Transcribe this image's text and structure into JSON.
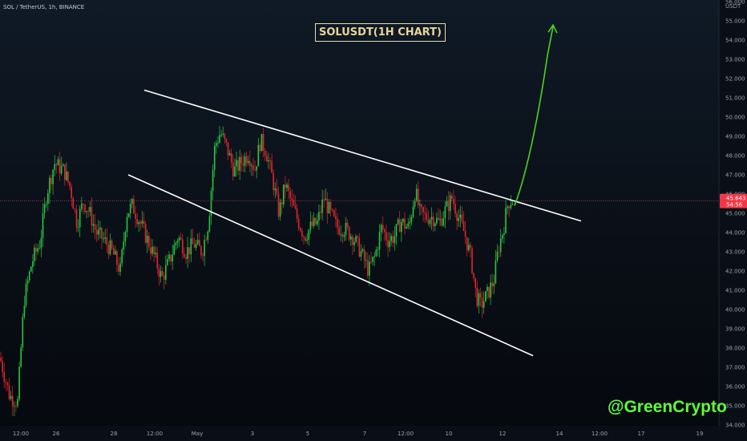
{
  "header": {
    "symbol_label": "SOL / TetherUS, 1h, BINANCE",
    "chart_title": "SOLUSDT(1H CHART)",
    "watermark": "@GreenCrypto",
    "currency": "USDT"
  },
  "colors": {
    "up": "#26c940",
    "down": "#e3262e",
    "trendline": "#ffffff",
    "projection": "#4cd41e",
    "price_badge": "#f23645",
    "price_line": "#a8323a"
  },
  "chart_data": {
    "type": "candlestick",
    "title": "SOLUSDT(1H CHART)",
    "y_axis": {
      "unit": "USDT",
      "range": [
        34.0,
        56.0
      ],
      "ticks": [
        "34.000",
        "35.000",
        "36.000",
        "37.000",
        "38.000",
        "39.000",
        "40.000",
        "41.000",
        "42.000",
        "43.000",
        "44.000",
        "45.000",
        "46.000",
        "47.000",
        "48.000",
        "49.000",
        "50.000",
        "51.000",
        "52.000",
        "53.000",
        "54.000",
        "55.000",
        "56.000"
      ]
    },
    "x_axis": {
      "tick_labels": [
        "12:00",
        "26",
        "28",
        "12:00",
        "May",
        "3",
        "5",
        "7",
        "12:00",
        "10",
        "12",
        "14",
        "12:00",
        "17",
        "19"
      ]
    },
    "current_price": "45.643",
    "countdown": "54:56",
    "price_path": [
      [
        0,
        37.5
      ],
      [
        12,
        35.5
      ],
      [
        22,
        35.2
      ],
      [
        30,
        40.5
      ],
      [
        40,
        42.5
      ],
      [
        50,
        43.5
      ],
      [
        58,
        46.0
      ],
      [
        68,
        47.6
      ],
      [
        80,
        47.2
      ],
      [
        88,
        46.3
      ],
      [
        96,
        44.5
      ],
      [
        104,
        45.6
      ],
      [
        112,
        45.0
      ],
      [
        120,
        44.0
      ],
      [
        130,
        43.6
      ],
      [
        140,
        43.0
      ],
      [
        150,
        42.0
      ],
      [
        158,
        45.0
      ],
      [
        165,
        45.4
      ],
      [
        174,
        44.6
      ],
      [
        182,
        43.8
      ],
      [
        192,
        42.8
      ],
      [
        202,
        41.6
      ],
      [
        212,
        42.6
      ],
      [
        222,
        43.8
      ],
      [
        232,
        43.0
      ],
      [
        242,
        43.4
      ],
      [
        252,
        43.0
      ],
      [
        260,
        44.5
      ],
      [
        268,
        48.5
      ],
      [
        275,
        49.2
      ],
      [
        283,
        48.4
      ],
      [
        292,
        47.2
      ],
      [
        300,
        47.6
      ],
      [
        310,
        48.1
      ],
      [
        318,
        47.3
      ],
      [
        325,
        48.8
      ],
      [
        332,
        48.2
      ],
      [
        340,
        46.8
      ],
      [
        348,
        45.0
      ],
      [
        356,
        46.5
      ],
      [
        364,
        45.5
      ],
      [
        372,
        44.6
      ],
      [
        380,
        43.8
      ],
      [
        388,
        44.3
      ],
      [
        396,
        44.5
      ],
      [
        404,
        45.8
      ],
      [
        412,
        45.0
      ],
      [
        420,
        44.3
      ],
      [
        430,
        44.2
      ],
      [
        440,
        43.8
      ],
      [
        450,
        43.0
      ],
      [
        460,
        42.0
      ],
      [
        468,
        42.8
      ],
      [
        476,
        44.3
      ],
      [
        484,
        43.6
      ],
      [
        492,
        43.8
      ],
      [
        500,
        44.6
      ],
      [
        510,
        44.2
      ],
      [
        518,
        46.2
      ],
      [
        524,
        45.0
      ],
      [
        532,
        44.8
      ],
      [
        540,
        44.8
      ],
      [
        548,
        44.5
      ],
      [
        556,
        45.2
      ],
      [
        564,
        45.8
      ],
      [
        572,
        44.8
      ],
      [
        580,
        43.9
      ],
      [
        588,
        42.6
      ],
      [
        594,
        40.7
      ],
      [
        600,
        40.2
      ],
      [
        608,
        40.8
      ],
      [
        616,
        41.5
      ],
      [
        622,
        43.2
      ],
      [
        628,
        44.2
      ],
      [
        634,
        45.6
      ],
      [
        640,
        45.7
      ]
    ],
    "trendlines": [
      {
        "from": [
          180,
          51.4
        ],
        "to": [
          725,
          44.6
        ]
      },
      {
        "from": [
          160,
          47.0
        ],
        "to": [
          665,
          37.6
        ]
      }
    ],
    "projection_path": [
      [
        642,
        45.4
      ],
      [
        655,
        46.8
      ],
      [
        670,
        49.5
      ],
      [
        683,
        53.2
      ],
      [
        690,
        54.7
      ]
    ]
  }
}
